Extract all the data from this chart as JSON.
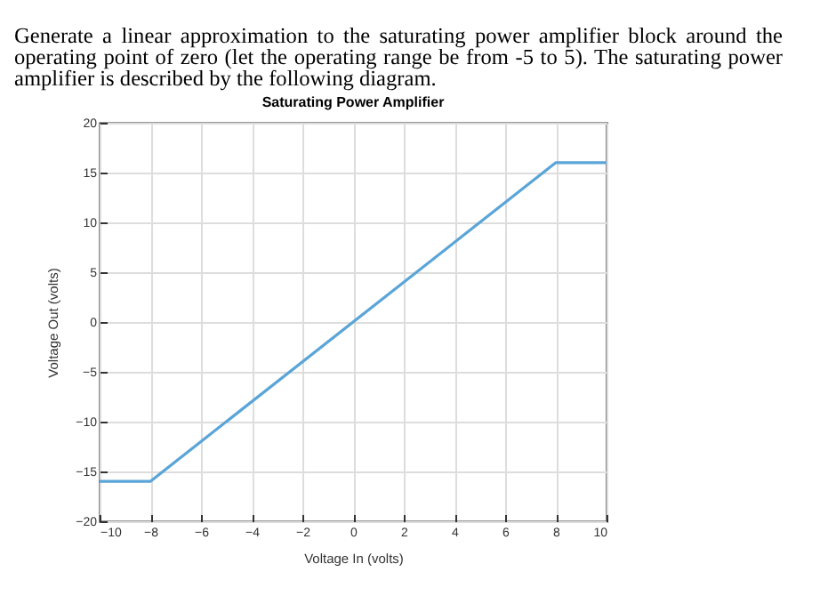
{
  "chart_data": {
    "type": "line",
    "title": "Saturating Power Amplifier",
    "xlabel": "Voltage In (volts)",
    "ylabel": "Voltage Out (volts)",
    "annotations": [
      "Generate a linear approximation to the saturating power amplifier block around the operating point of zero (let the operating range be from -5 to 5). The saturating power amplifier is described by the following diagram."
    ],
    "x": [
      -10,
      -8,
      8,
      10
    ],
    "series": [
      {
        "color": "#5aa5d8",
        "values": [
          -16,
          -16,
          16,
          16
        ]
      }
    ],
    "xlim": [
      -10,
      10
    ],
    "xticks": [
      -10,
      -8,
      -6,
      -4,
      -2,
      0,
      2,
      4,
      6,
      8,
      10
    ],
    "ylim": [
      -20,
      20
    ],
    "yticks": [
      -20,
      -15,
      -10,
      -5,
      0,
      5,
      10,
      15,
      20
    ],
    "grid": true,
    "marker": "none",
    "line_style": "solid"
  }
}
